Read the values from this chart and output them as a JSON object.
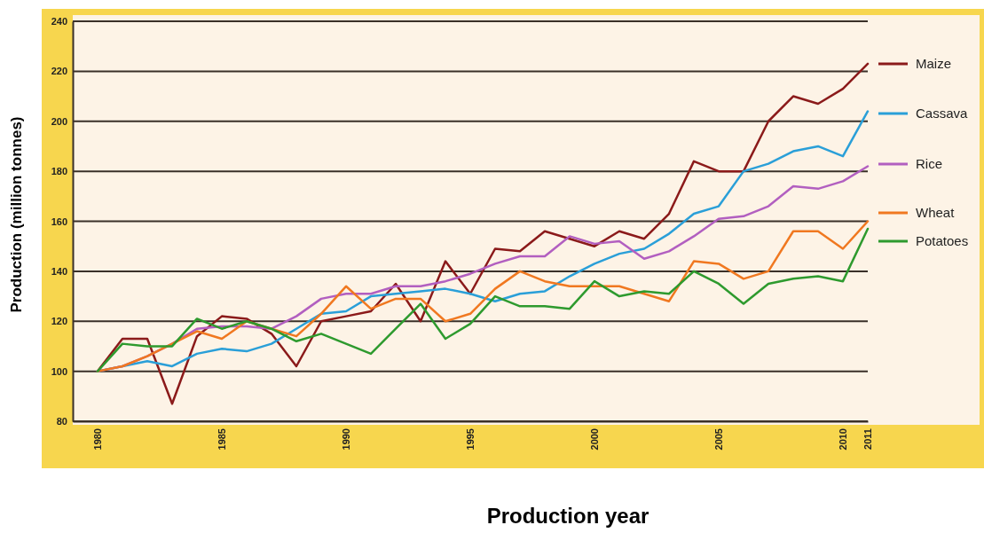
{
  "chart_data": {
    "type": "line",
    "xlabel": "Production year",
    "ylabel": "Production (million tonnes)",
    "x": [
      1980,
      1981,
      1982,
      1983,
      1984,
      1985,
      1986,
      1987,
      1988,
      1989,
      1990,
      1991,
      1992,
      1993,
      1994,
      1995,
      1996,
      1997,
      1998,
      1999,
      2000,
      2001,
      2002,
      2003,
      2004,
      2005,
      2006,
      2007,
      2008,
      2009,
      2010,
      2011
    ],
    "series": [
      {
        "name": "Maize",
        "color": "#8b1a1a",
        "values": [
          100,
          113,
          113,
          87,
          114,
          122,
          121,
          115,
          102,
          120,
          122,
          124,
          135,
          120,
          144,
          131,
          149,
          148,
          156,
          153,
          150,
          156,
          153,
          163,
          184,
          180,
          180,
          200,
          210,
          207,
          213,
          223
        ]
      },
      {
        "name": "Cassava",
        "color": "#2a9fd8",
        "values": [
          100,
          102,
          104,
          102,
          107,
          109,
          108,
          111,
          117,
          123,
          124,
          130,
          131,
          132,
          133,
          131,
          128,
          131,
          132,
          138,
          143,
          147,
          149,
          155,
          163,
          166,
          180,
          183,
          188,
          190,
          186,
          204
        ]
      },
      {
        "name": "Rice",
        "color": "#b25fc0",
        "values": [
          100,
          102,
          106,
          111,
          117,
          118,
          118,
          117,
          122,
          129,
          131,
          131,
          134,
          134,
          136,
          139,
          143,
          146,
          146,
          154,
          151,
          152,
          145,
          148,
          154,
          161,
          162,
          166,
          174,
          173,
          176,
          182
        ]
      },
      {
        "name": "Wheat",
        "color": "#f07820",
        "values": [
          100,
          102,
          106,
          111,
          116,
          113,
          120,
          117,
          114,
          123,
          134,
          125,
          129,
          129,
          120,
          123,
          133,
          140,
          136,
          134,
          134,
          134,
          131,
          128,
          144,
          143,
          137,
          140,
          156,
          156,
          149,
          160
        ]
      },
      {
        "name": "Potatoes",
        "color": "#2e9a2e",
        "values": [
          100,
          111,
          110,
          110,
          121,
          117,
          120,
          117,
          112,
          115,
          111,
          107,
          117,
          127,
          113,
          119,
          130,
          126,
          126,
          125,
          136,
          130,
          132,
          131,
          140,
          135,
          127,
          135,
          137,
          138,
          136,
          157
        ]
      }
    ],
    "xlim": [
      1979,
      2011
    ],
    "xticks": [
      1980,
      1985,
      1990,
      1995,
      2000,
      2005,
      2010,
      2011
    ],
    "ylim": [
      80,
      240
    ],
    "yticks": [
      80,
      100,
      120,
      140,
      160,
      180,
      200,
      220,
      240
    ],
    "grid": "y",
    "legend": "right",
    "marker": "none",
    "line_style": "solid"
  }
}
